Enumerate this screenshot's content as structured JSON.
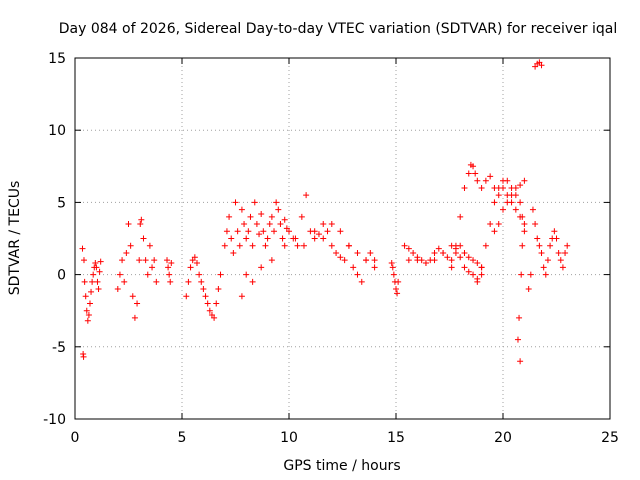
{
  "chart_data": {
    "type": "scatter",
    "title": "Day 084 of 2026, Sidereal Day-to-day VTEC variation (SDTVAR) for receiver iqal",
    "xlabel": "GPS time / hours",
    "ylabel": "SDTVAR / TECUs",
    "xlim": [
      0,
      25
    ],
    "ylim": [
      -10,
      15
    ],
    "xticks": [
      0,
      5,
      10,
      15,
      20,
      25
    ],
    "yticks": [
      -10,
      -5,
      0,
      5,
      10,
      15
    ],
    "grid": true,
    "marker": "+",
    "series": [
      {
        "name": "SDTVAR",
        "color": "#ff0000",
        "x": [
          0.35,
          0.38,
          0.4,
          0.42,
          0.45,
          0.5,
          0.55,
          0.6,
          0.65,
          0.7,
          0.75,
          0.8,
          0.85,
          0.9,
          0.95,
          1.0,
          1.05,
          1.1,
          1.15,
          1.2,
          2.0,
          2.1,
          2.2,
          2.3,
          2.4,
          2.5,
          2.6,
          2.7,
          2.8,
          2.9,
          3.0,
          3.05,
          3.1,
          3.2,
          3.3,
          3.4,
          3.5,
          3.6,
          3.7,
          3.8,
          4.3,
          4.35,
          4.4,
          4.45,
          4.5,
          5.2,
          5.3,
          5.4,
          5.5,
          5.6,
          5.7,
          5.8,
          5.9,
          6.0,
          6.1,
          6.2,
          6.3,
          6.4,
          6.5,
          6.6,
          6.7,
          6.8,
          7.0,
          7.1,
          7.2,
          7.3,
          7.4,
          7.5,
          7.6,
          7.7,
          7.8,
          7.9,
          8.0,
          8.1,
          8.2,
          8.3,
          8.4,
          8.5,
          8.6,
          8.7,
          8.8,
          8.9,
          9.0,
          9.1,
          9.2,
          9.3,
          9.4,
          9.5,
          9.6,
          9.7,
          9.8,
          9.9,
          10.0,
          10.2,
          10.4,
          10.6,
          10.8,
          11.0,
          11.2,
          11.4,
          11.6,
          11.8,
          12.0,
          12.2,
          12.4,
          12.6,
          12.8,
          13.0,
          13.2,
          13.4,
          13.6,
          13.8,
          14.0,
          7.8,
          8.0,
          8.3,
          8.7,
          9.2,
          9.8,
          10.3,
          10.7,
          11.2,
          11.6,
          12.0,
          12.4,
          12.8,
          13.2,
          13.6,
          14.0,
          14.8,
          14.85,
          14.9,
          14.95,
          15.0,
          15.05,
          15.1,
          15.4,
          15.6,
          15.8,
          16.0,
          16.2,
          16.4,
          16.6,
          16.8,
          17.0,
          17.2,
          17.4,
          17.6,
          17.8,
          18.0,
          18.2,
          18.4,
          18.6,
          18.8,
          19.0,
          15.6,
          16.0,
          16.4,
          16.8,
          17.2,
          17.6,
          17.8,
          18.0,
          18.2,
          18.4,
          18.6,
          18.8,
          19.0,
          17.6,
          17.8,
          18.0,
          18.2,
          18.4,
          18.5,
          18.6,
          18.7,
          18.8,
          19.0,
          19.2,
          19.4,
          19.6,
          19.8,
          20.0,
          20.2,
          20.4,
          20.6,
          20.8,
          21.0,
          18.8,
          19.0,
          19.2,
          19.4,
          19.6,
          19.8,
          20.0,
          20.2,
          20.4,
          20.6,
          20.8,
          21.0,
          19.6,
          19.8,
          20.0,
          20.2,
          20.4,
          20.6,
          20.8,
          20.9,
          21.0,
          20.7,
          20.75,
          20.8,
          20.85,
          20.9,
          21.2,
          21.3,
          21.4,
          21.5,
          21.6,
          21.7,
          21.8,
          21.9,
          22.0,
          22.1,
          22.2,
          22.3,
          22.4,
          22.5,
          22.6,
          22.7,
          22.8,
          22.9,
          23.0,
          21.5,
          21.6,
          21.7,
          21.8
        ],
        "y": [
          1.8,
          -5.5,
          -5.7,
          1.0,
          -0.5,
          -1.5,
          -2.5,
          -3.2,
          -2.8,
          -2.0,
          -1.2,
          -0.5,
          0.0,
          0.5,
          0.8,
          0.5,
          -0.5,
          -1.0,
          0.2,
          0.9,
          -1.0,
          0.0,
          1.0,
          -0.5,
          1.5,
          3.5,
          2.0,
          -1.5,
          -3.0,
          -2.0,
          1.0,
          3.5,
          3.8,
          2.5,
          1.0,
          0.0,
          2.0,
          0.5,
          1.0,
          -0.5,
          1.0,
          0.5,
          0.0,
          -0.5,
          0.8,
          -1.5,
          -0.5,
          0.5,
          1.0,
          1.2,
          0.8,
          0.0,
          -0.5,
          -1.0,
          -1.5,
          -2.0,
          -2.5,
          -2.8,
          -3.0,
          -2.0,
          -1.0,
          0.0,
          2.0,
          3.0,
          4.0,
          2.5,
          1.5,
          5.0,
          3.0,
          2.0,
          4.5,
          3.5,
          2.5,
          3.0,
          4.0,
          2.0,
          5.0,
          3.5,
          2.8,
          4.2,
          3.0,
          2.0,
          2.5,
          3.5,
          4.0,
          3.0,
          5.0,
          4.5,
          3.5,
          2.5,
          3.8,
          3.2,
          3.0,
          2.5,
          2.0,
          4.0,
          5.5,
          3.0,
          2.5,
          2.8,
          3.5,
          3.0,
          2.0,
          1.5,
          1.2,
          1.0,
          2.0,
          0.5,
          0.0,
          -0.5,
          1.0,
          1.5,
          1.0,
          -1.5,
          0.0,
          -0.5,
          0.5,
          1.0,
          2.0,
          2.5,
          2.0,
          3.0,
          2.5,
          3.5,
          3.0,
          2.0,
          1.5,
          1.0,
          0.5,
          0.8,
          0.5,
          0.0,
          -0.5,
          -1.0,
          -1.3,
          -0.5,
          2.0,
          1.8,
          1.5,
          1.2,
          1.0,
          0.8,
          1.0,
          1.5,
          1.8,
          1.5,
          1.2,
          1.0,
          1.5,
          2.0,
          1.5,
          1.2,
          1.0,
          0.8,
          0.5,
          1.0,
          1.0,
          0.8,
          1.0,
          1.5,
          2.0,
          1.8,
          1.2,
          0.5,
          0.2,
          0.0,
          -0.3,
          0.0,
          0.5,
          2.0,
          4.0,
          6.0,
          7.0,
          7.6,
          7.5,
          7.0,
          6.5,
          6.0,
          6.5,
          6.8,
          6.0,
          5.5,
          6.0,
          6.5,
          5.5,
          6.0,
          6.2,
          6.5,
          -0.5,
          0.5,
          2.0,
          3.5,
          5.0,
          6.0,
          6.5,
          5.5,
          5.0,
          4.5,
          4.0,
          3.5,
          3.0,
          3.5,
          4.5,
          5.0,
          6.0,
          5.5,
          5.0,
          4.0,
          3.0,
          -4.5,
          -3.0,
          -6.0,
          0.0,
          2.0,
          -1.0,
          0.0,
          4.5,
          3.5,
          2.5,
          2.0,
          1.5,
          0.5,
          0.0,
          1.0,
          2.0,
          2.5,
          3.0,
          2.5,
          1.5,
          1.0,
          0.5,
          1.5,
          2.0,
          14.4,
          14.6,
          14.7,
          14.5
        ]
      }
    ]
  }
}
